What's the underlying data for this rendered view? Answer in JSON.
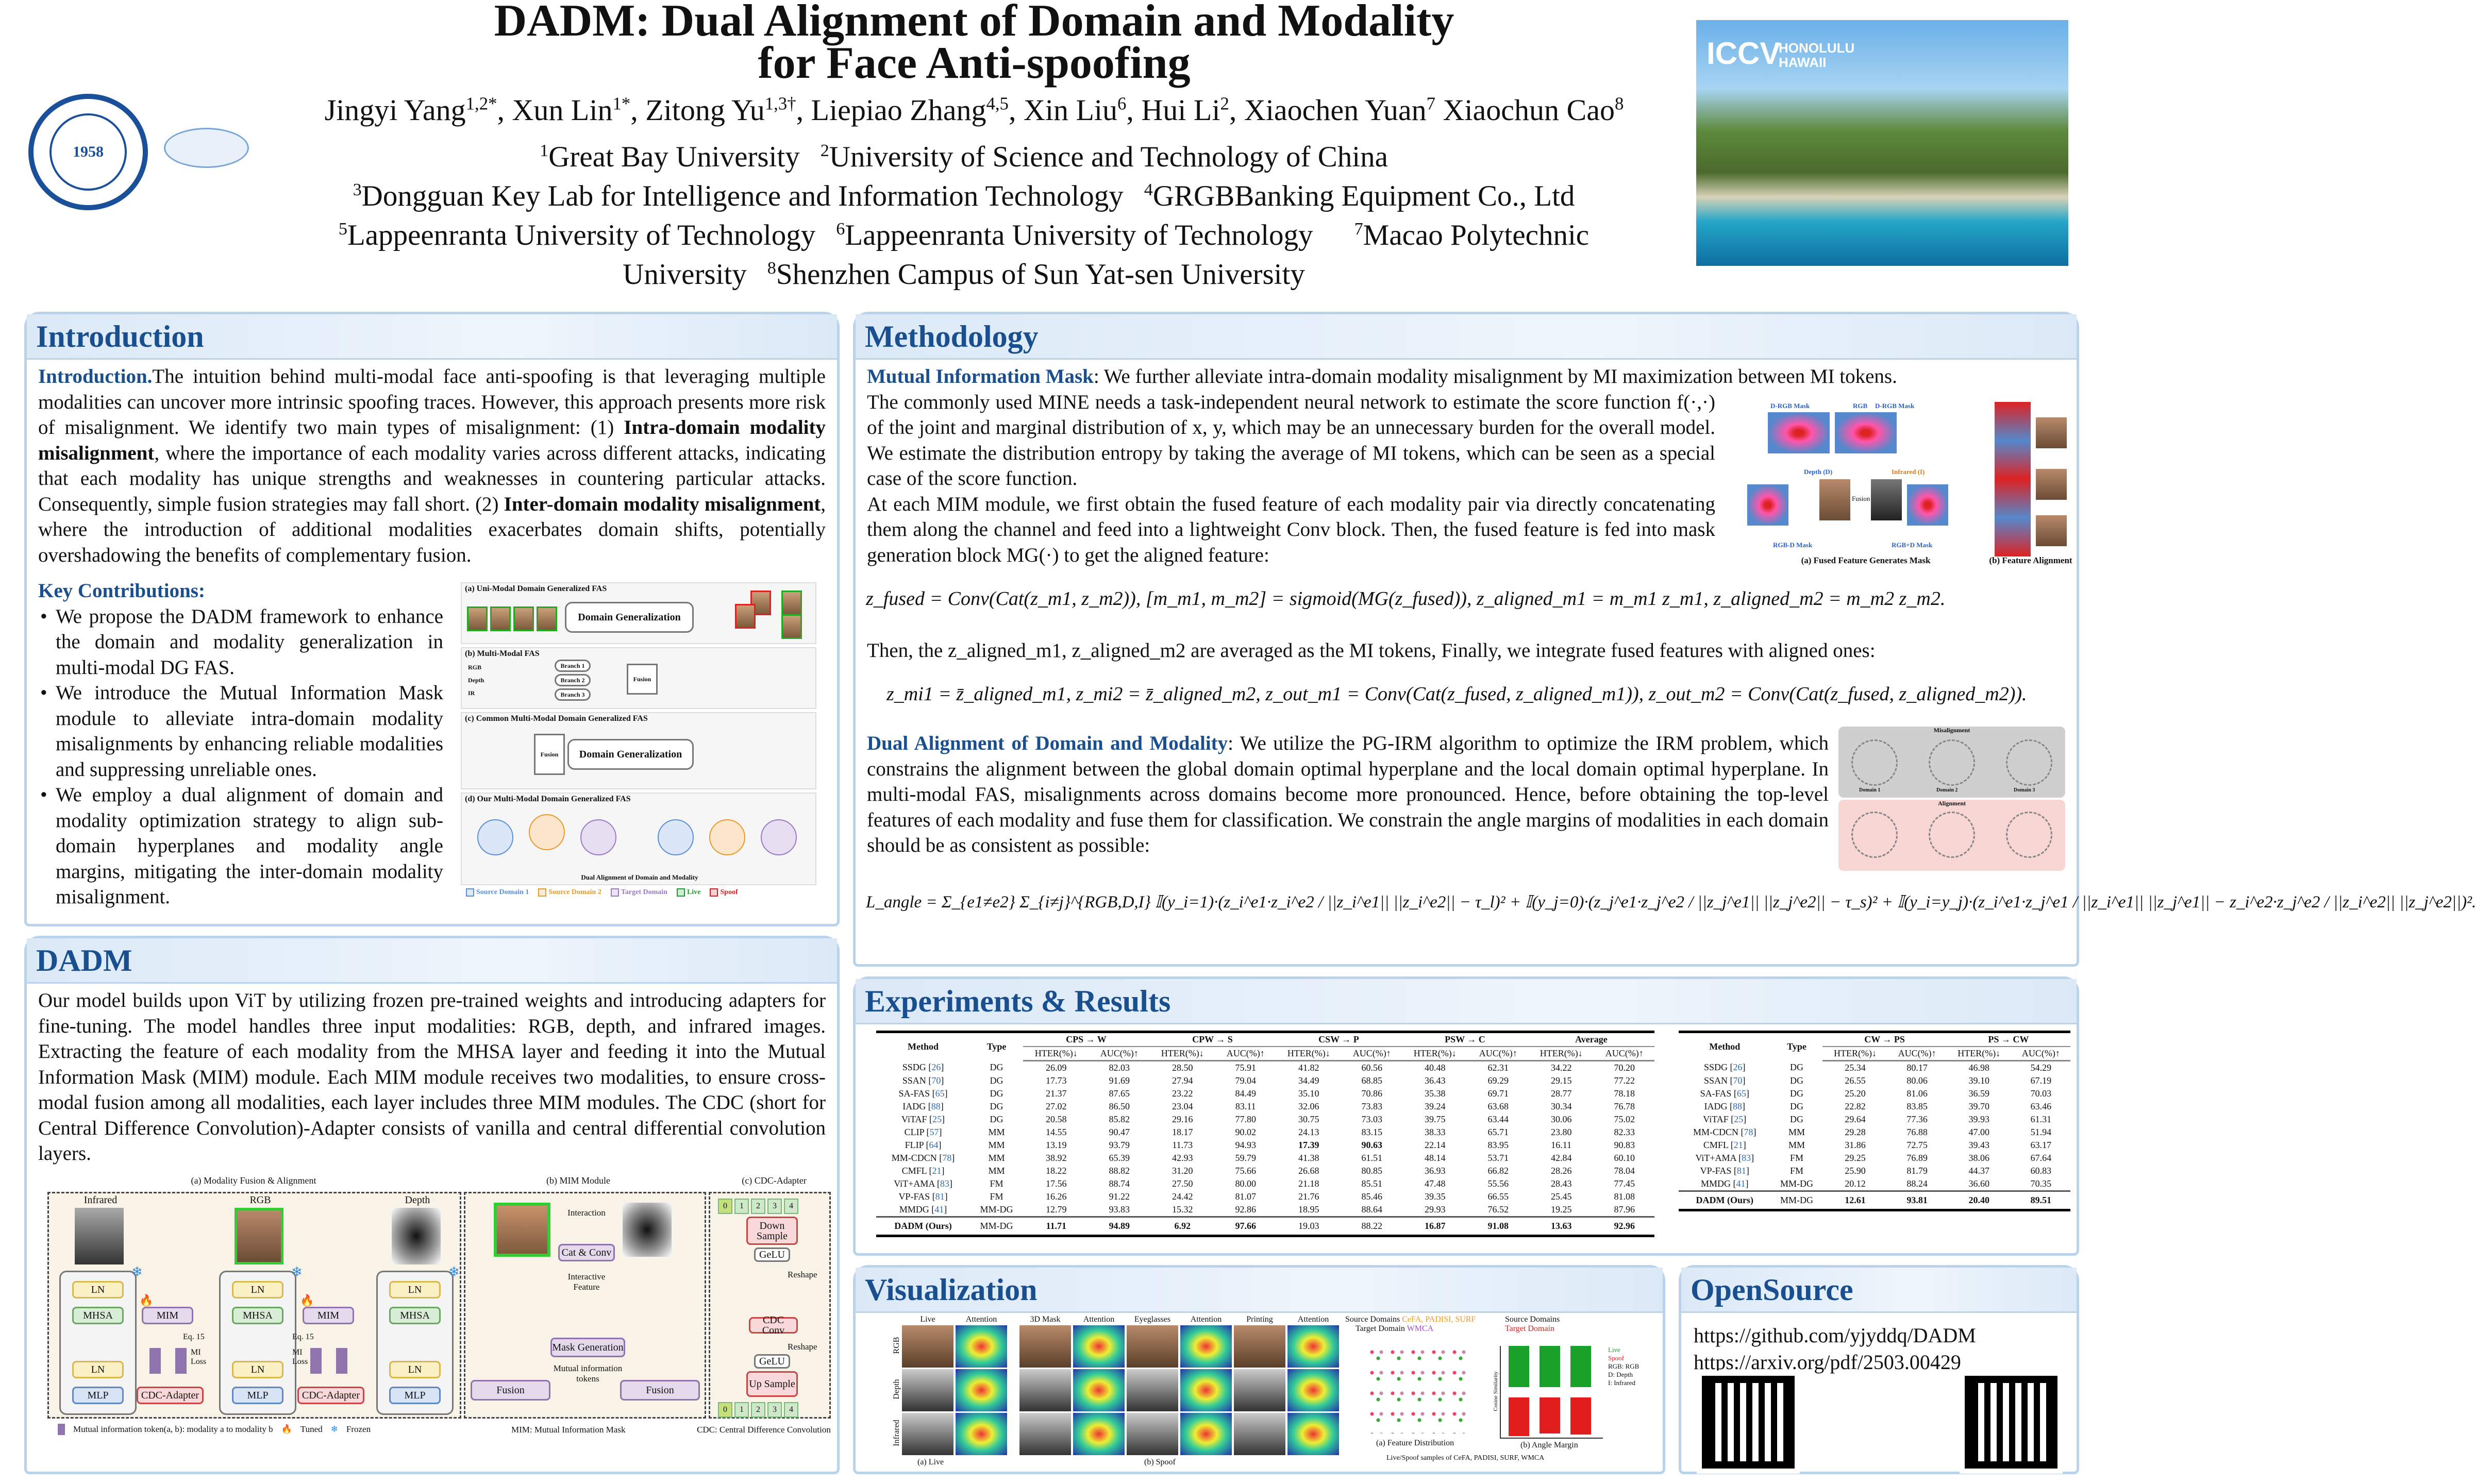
{
  "header": {
    "title_line1": "DADM: Dual Alignment of Domain and Modality",
    "title_line2": "for Face Anti-spoofing",
    "authors": [
      {
        "name": "Jingyi Yang",
        "sup": "1,2*"
      },
      {
        "name": "Xun Lin",
        "sup": "1*"
      },
      {
        "name": "Zitong Yu",
        "sup": "1,3†"
      },
      {
        "name": "Liepiao Zhang",
        "sup": "4,5"
      },
      {
        "name": "Xin Liu",
        "sup": "6"
      },
      {
        "name": "Hui Li",
        "sup": "2"
      },
      {
        "name": "Xiaochen Yuan",
        "sup": "7"
      },
      {
        "name": "Xiaochun Cao",
        "sup": "8"
      }
    ],
    "affiliations": [
      {
        "sup": "1",
        "name": "Great Bay University"
      },
      {
        "sup": "2",
        "name": "University of Science and Technology of China"
      },
      {
        "sup": "3",
        "name": "Dongguan Key Lab for Intelligence and Information Technology"
      },
      {
        "sup": "4",
        "name": "GRGBBanking Equipment Co., Ltd"
      },
      {
        "sup": "5",
        "name": "Lappeenranta University of Technology"
      },
      {
        "sup": "6",
        "name": "Lappeenranta University of Technology"
      },
      {
        "sup": "7",
        "name": "Macao Polytechnic"
      },
      {
        "sup": "",
        "name": "University"
      },
      {
        "sup": "8",
        "name": "Shenzhen Campus of Sun Yat-sen University"
      }
    ],
    "logo_left_year": "1958",
    "logo_badge": "ICCV",
    "logo_badge_place": "HONOLULU HAWAII"
  },
  "intro": {
    "title": "Introduction",
    "lead": "Introduction.",
    "t1": "The intuition behind multi-modal face anti-spoofing is that leveraging multiple modalities can uncover more intrinsic spoofing traces.  However, this approach presents more risk of misalignment. We identify two main types of misalignment: (1) ",
    "b1": "Intra-domain modality misalignment",
    "t2": ", where the importance of each modality varies across different attacks, indicating that each modality has unique strengths and weaknesses in countering particular attacks.  Consequently, simple fusion strategies may fall short.  (2) ",
    "b2": "Inter-domain modality misalignment",
    "t3": ", where the introduction of additional modalities exacerbates domain shifts, potentially overshadowing the benefits of complementary fusion.",
    "kc_title": "Key Contributions:",
    "contributions": [
      "We propose the DADM framework to enhance the domain and modality generalization in multi-modal DG FAS.",
      "We introduce the Mutual Information Mask module to alleviate intra-domain modality misalignments by enhancing reliable modalities and suppressing unreliable ones.",
      "We employ a dual alignment of domain and modality optimization strategy to align sub-domain hyperplanes and modality angle margins, mitigating the inter-domain modality misalignment."
    ],
    "figure": {
      "a": "(a) Uni-Modal Domain Generalized FAS",
      "b": "(b) Multi-Modal FAS",
      "c": "(c) Common Multi-Modal Domain Generalized FAS",
      "d": "(d) Our Multi-Modal Domain Generalized FAS",
      "dg": "Domain Generalization",
      "fusion": "Fusion",
      "branches": [
        "Branch 1",
        "Branch 2",
        "Branch 3"
      ],
      "modalities": [
        "RGB",
        "Depth",
        "IR"
      ],
      "dual": "Dual Alignment of Domain and Modality",
      "legend": [
        {
          "label": "Source Domain 1",
          "color": "#5b8fd6"
        },
        {
          "label": "Source Domain 2",
          "color": "#e89a2c"
        },
        {
          "label": "Target Domain",
          "color": "#9a7bc2"
        },
        {
          "label": "Live",
          "color": "#1e9a2e"
        },
        {
          "label": "Spoof",
          "color": "#d92020"
        }
      ]
    }
  },
  "dadm": {
    "title": "DADM",
    "text": "Our model builds upon ViT by utilizing frozen pre-trained weights and introducing adapters for fine-tuning. The model handles three input modalities: RGB, depth, and infrared images. Extracting the feature of each modality from the MHSA layer and feeding it into the Mutual Information Mask (MIM) module.  Each MIM module receives two modalities, to ensure cross-modal fusion among all modalities, each layer includes three MIM modules. The CDC (short for Central Difference Convolution)-Adapter consists of vanilla and central differential convolution layers.",
    "figure": {
      "a_title": "(a) Modality Fusion & Alignment",
      "b_title": "(b) MIM Module",
      "c_title": "(c) CDC-Adapter",
      "inputs": [
        "Infrared",
        "RGB",
        "Depth"
      ],
      "ln": "LN",
      "mhsa": "MHSA",
      "mlp": "MLP",
      "mim": "MIM",
      "cdc": "CDC-Adapter",
      "eq": "Eq. 15",
      "miloss": "MI Loss",
      "interaction": "Interaction",
      "catconv": "Cat & Conv",
      "interactive": "Interactive Feature",
      "maskgen": "Mask Generation",
      "mitokens": "Mutual information tokens",
      "fusion": "Fusion",
      "down": "Down Sample",
      "gelu": "GeLU",
      "reshape": "Reshape",
      "cdcconv": "CDC Conv",
      "up": "Up Sample",
      "tokens": [
        "0",
        "1",
        "2",
        "3",
        "4"
      ],
      "legend_token": "Mutual information token(a, b): modality a to modality b",
      "legend_tuned": "Tuned",
      "legend_frozen": "Frozen",
      "mim_def": "MIM: Mutual Information Mask",
      "cdc_def": "CDC: Central Difference Convolution"
    }
  },
  "method": {
    "title": "Methodology",
    "mim_head": "Mutual Information Mask",
    "mim_t1": ": We further alleviate intra-domain modality misalignment by MI maximization between MI tokens.",
    "mim_t2": "The commonly used MINE needs a task-independent neural network to estimate the score function f(·,·) of the joint and marginal distribution of x, y, which may be an unnecessary burden for the overall model.  We estimate the distribution entropy by taking the average of MI tokens, which can be seen as a special case of the score function.",
    "mim_t3": "At each MIM module, we first obtain the fused feature of each modality pair via directly concatenating them along the channel and feed into a lightweight Conv block. Then, the fused feature is fed into mask generation block MG(·) to get the aligned feature:",
    "eq1": "z_fused = Conv(Cat(z_m1, z_m2)),     [m_m1, m_m2] = sigmoid(MG(z_fused)),     z_aligned_m1 = m_m1 z_m1,  z_aligned_m2 = m_m2 z_m2.",
    "mim_t4": "Then, the z_aligned_m1, z_aligned_m2 are averaged as the MI tokens, Finally, we integrate fused features with aligned ones:",
    "eq2": "z_mi1 = z̄_aligned_m1,  z_mi2 = z̄_aligned_m2,     z_out_m1 = Conv(Cat(z_fused, z_aligned_m1)),     z_out_m2 = Conv(Cat(z_fused, z_aligned_m2)).",
    "da_head": "Dual Alignment of Domain and Modality",
    "da_t1": ": We utilize the PG-IRM algorithm to optimize the IRM problem, which constrains the alignment between the global domain optimal hyperplane and the local domain optimal hyperplane.  In multi-modal FAS, misalignments across domains become more pronounced.  Hence, before obtaining the top-level features of each modality and fuse them for classification. We constrain the angle margins of modalities in each domain should be as consistent as possible:",
    "eq3": "L_angle = Σ_{e1≠e2} Σ_{i≠j}^{RGB,D,I} 𝕀(y_i=1)·(z_i^e1·z_i^e2 / ||z_i^e1|| ||z_i^e2|| − τ_l)² + 𝕀(y_j=0)·(z_j^e1·z_j^e2 / ||z_j^e1|| ||z_j^e2|| − τ_s)² + 𝕀(y_i=y_j)·(z_i^e1·z_j^e1 / ||z_i^e1|| ||z_j^e1|| − z_i^e2·z_j^e2 / ||z_i^e2|| ||z_j^e2||)².",
    "fig1_caps": [
      "(a) Fused Feature Generates Mask",
      "(b) Feature Alignment"
    ],
    "fig1_labels": [
      "D-RGB Mask",
      "RGB",
      "D-RGB Mask",
      "Depth (D)",
      "Infrared (I)",
      "Fusion",
      "RGB-D Mask",
      "RGB+D Mask"
    ],
    "fig2_labels": [
      "Misalignment",
      "Alignment",
      "Domain 1",
      "Domain 2",
      "Domain 3"
    ]
  },
  "experiments": {
    "title": "Experiments & Results",
    "table1": {
      "protocols": [
        "CPS → W",
        "CPW → S",
        "CSW → P",
        "PSW → C",
        "Average"
      ],
      "method_h": "Method",
      "type_h": "Type",
      "hter_h": "HTER(%)↓",
      "auc_h": "AUC(%)↑",
      "rows": [
        [
          "SSDG",
          "26",
          "DG",
          "26.09",
          "82.03",
          "28.50",
          "75.91",
          "41.82",
          "60.56",
          "40.48",
          "62.31",
          "34.22",
          "70.20"
        ],
        [
          "SSAN",
          "70",
          "DG",
          "17.73",
          "91.69",
          "27.94",
          "79.04",
          "34.49",
          "68.85",
          "36.43",
          "69.29",
          "29.15",
          "77.22"
        ],
        [
          "SA-FAS",
          "65",
          "DG",
          "21.37",
          "87.65",
          "23.22",
          "84.49",
          "35.10",
          "70.86",
          "35.38",
          "69.71",
          "28.77",
          "78.18"
        ],
        [
          "IADG",
          "88",
          "DG",
          "27.02",
          "86.50",
          "23.04",
          "83.11",
          "32.06",
          "73.83",
          "39.24",
          "63.68",
          "30.34",
          "76.78"
        ],
        [
          "ViTAF",
          "25",
          "DG",
          "20.58",
          "85.82",
          "29.16",
          "77.80",
          "30.75",
          "73.03",
          "39.75",
          "63.44",
          "30.06",
          "75.02"
        ],
        [
          "CLIP",
          "57",
          "MM",
          "14.55",
          "90.47",
          "18.17",
          "90.02",
          "24.13",
          "83.15",
          "38.33",
          "65.71",
          "23.80",
          "82.33"
        ],
        [
          "FLIP",
          "64",
          "MM",
          "13.19",
          "93.79",
          "11.73",
          "94.93",
          "17.39",
          "90.63",
          "22.14",
          "83.95",
          "16.11",
          "90.83"
        ],
        [
          "MM-CDCN",
          "78",
          "MM",
          "38.92",
          "65.39",
          "42.93",
          "59.79",
          "41.38",
          "61.51",
          "48.14",
          "53.71",
          "42.84",
          "60.10"
        ],
        [
          "CMFL",
          "21",
          "MM",
          "18.22",
          "88.82",
          "31.20",
          "75.66",
          "26.68",
          "80.85",
          "36.93",
          "66.82",
          "28.26",
          "78.04"
        ],
        [
          "ViT+AMA",
          "83",
          "FM",
          "17.56",
          "88.74",
          "27.50",
          "80.00",
          "21.18",
          "85.51",
          "47.48",
          "55.56",
          "28.43",
          "77.45"
        ],
        [
          "VP-FAS",
          "81",
          "FM",
          "16.26",
          "91.22",
          "24.42",
          "81.07",
          "21.76",
          "85.46",
          "39.35",
          "66.55",
          "25.45",
          "81.08"
        ],
        [
          "MMDG",
          "41",
          "MM-DG",
          "12.79",
          "93.83",
          "15.32",
          "92.86",
          "18.95",
          "88.64",
          "29.93",
          "76.52",
          "19.25",
          "87.96"
        ]
      ],
      "ours": [
        "DADM (Ours)",
        "",
        "MM-DG",
        "11.71",
        "94.89",
        "6.92",
        "97.66",
        "19.03",
        "88.22",
        "16.87",
        "91.08",
        "13.63",
        "92.96"
      ],
      "bold_cells": [
        [
          6,
          7
        ],
        [
          6,
          8
        ]
      ],
      "ours_bold": [
        3,
        4,
        5,
        6,
        9,
        10,
        11,
        12
      ]
    },
    "table2": {
      "protocols": [
        "CW → PS",
        "PS → CW"
      ],
      "rows": [
        [
          "SSDG",
          "26",
          "DG",
          "25.34",
          "80.17",
          "46.98",
          "54.29"
        ],
        [
          "SSAN",
          "70",
          "DG",
          "26.55",
          "80.06",
          "39.10",
          "67.19"
        ],
        [
          "SA-FAS",
          "65",
          "DG",
          "25.20",
          "81.06",
          "36.59",
          "70.03"
        ],
        [
          "IADG",
          "88",
          "DG",
          "22.82",
          "83.85",
          "39.70",
          "63.46"
        ],
        [
          "ViTAF",
          "25",
          "DG",
          "29.64",
          "77.36",
          "39.93",
          "61.31"
        ],
        [
          "MM-CDCN",
          "78",
          "MM",
          "29.28",
          "76.88",
          "47.00",
          "51.94"
        ],
        [
          "CMFL",
          "21",
          "MM",
          "31.86",
          "72.75",
          "39.43",
          "63.17"
        ],
        [
          "ViT+AMA",
          "83",
          "FM",
          "29.25",
          "76.89",
          "38.06",
          "67.64"
        ],
        [
          "VP-FAS",
          "81",
          "FM",
          "25.90",
          "81.79",
          "44.37",
          "60.83"
        ],
        [
          "MMDG",
          "41",
          "MM-DG",
          "20.12",
          "88.24",
          "36.60",
          "70.35"
        ]
      ],
      "ours": [
        "DADM (Ours)",
        "",
        "MM-DG",
        "12.61",
        "93.81",
        "20.40",
        "89.51"
      ],
      "ours_bold": [
        3,
        4,
        5,
        6
      ]
    }
  },
  "visualization": {
    "title": "Visualization",
    "live_cols": [
      "Live",
      "Attention"
    ],
    "spoof_cols": [
      "3D Mask",
      "Attention",
      "Eyeglasses",
      "Attention",
      "Printing",
      "Attention"
    ],
    "rows": [
      "RGB",
      "Depth",
      "Infrared"
    ],
    "cap_live": "(a) Live",
    "cap_spoof": "(b) Spoof",
    "fd_title1": "Source Domains",
    "fd_src": "CeFA, PADISI, SURF",
    "fd_title2": "Target Domain",
    "fd_tgt": "WMCA",
    "am_title1": "Source Domains",
    "am_title2": "Target Domain",
    "am_legend": [
      "Live",
      "Spoof",
      "RGB: RGB",
      "D: Depth",
      "I: Infrared"
    ],
    "am_ylabel": "Cosine Similarity",
    "cap_fd": "(a) Feature Distribution",
    "cap_am": "(b) Angle Margin",
    "bottom_legend": "Live/Spoof samples of CeFA, PADISI, SURF, WMCA"
  },
  "opensource": {
    "title": "OpenSource",
    "links": [
      "https://github.com/yjyddq/DADM",
      "https://arxiv.org/pdf/2503.00429"
    ]
  }
}
